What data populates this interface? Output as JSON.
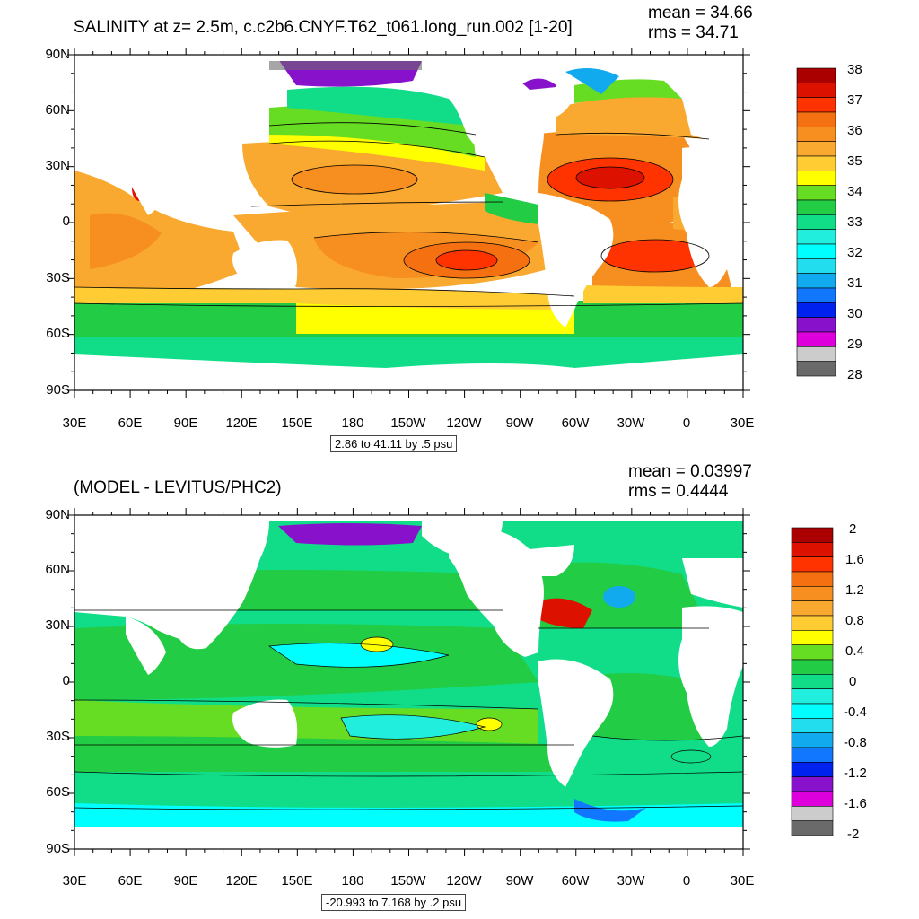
{
  "maps": [
    {
      "title": "SALINITY at z=   2.5m, c.c2b6.CNYF.T62_t061.long_run.002 [1-20]",
      "mean_label": "mean = 34.66",
      "rms_label": "rms = 34.71",
      "range_label": "2.86 to 41.11 by .5 psu",
      "lat_labels": [
        "90N",
        "60N",
        "30N",
        "0",
        "30S",
        "60S",
        "90S"
      ],
      "lon_labels": [
        "30E",
        "60E",
        "90E",
        "120E",
        "150E",
        "180",
        "150W",
        "120W",
        "90W",
        "60W",
        "30W",
        "0",
        "30E"
      ],
      "colorbar": {
        "labels": [
          "38",
          "37",
          "36",
          "35",
          "34",
          "33",
          "32",
          "31",
          "30",
          "29",
          "28"
        ],
        "colors": [
          "#aa0000",
          "#dd1100",
          "#ff3300",
          "#f47010",
          "#f78f20",
          "#f9a830",
          "#ffcc33",
          "#ffff00",
          "#66dd22",
          "#22cc44",
          "#11dd88",
          "#22eedd",
          "#00ffff",
          "#22ddee",
          "#11aaee",
          "#1177ff",
          "#0022ee",
          "#8811cc",
          "#dd00dd",
          "#cccccc",
          "#6a6a6a"
        ]
      }
    },
    {
      "title": "(MODEL - LEVITUS/PHC2)",
      "mean_label": "mean = 0.03997",
      "rms_label": "rms = 0.4444",
      "range_label": "-20.993 to 7.168 by .2 psu",
      "lat_labels": [
        "90N",
        "60N",
        "30N",
        "0",
        "30S",
        "60S",
        "90S"
      ],
      "lon_labels": [
        "30E",
        "60E",
        "90E",
        "120E",
        "150E",
        "180",
        "150W",
        "120W",
        "90W",
        "60W",
        "30W",
        "0",
        "30E"
      ],
      "colorbar": {
        "labels": [
          "2",
          "1.6",
          "1.2",
          "0.8",
          "0.4",
          "0",
          "-0.4",
          "-0.8",
          "-1.2",
          "-1.6",
          "-2"
        ],
        "colors": [
          "#aa0000",
          "#dd1100",
          "#ff3300",
          "#f47010",
          "#f78f20",
          "#f9a830",
          "#ffcc33",
          "#ffff00",
          "#66dd22",
          "#22cc44",
          "#11dd88",
          "#22eedd",
          "#00ffff",
          "#22ddee",
          "#11aaee",
          "#1177ff",
          "#0022ee",
          "#8811cc",
          "#dd00dd",
          "#cccccc",
          "#6a6a6a"
        ]
      }
    }
  ]
}
